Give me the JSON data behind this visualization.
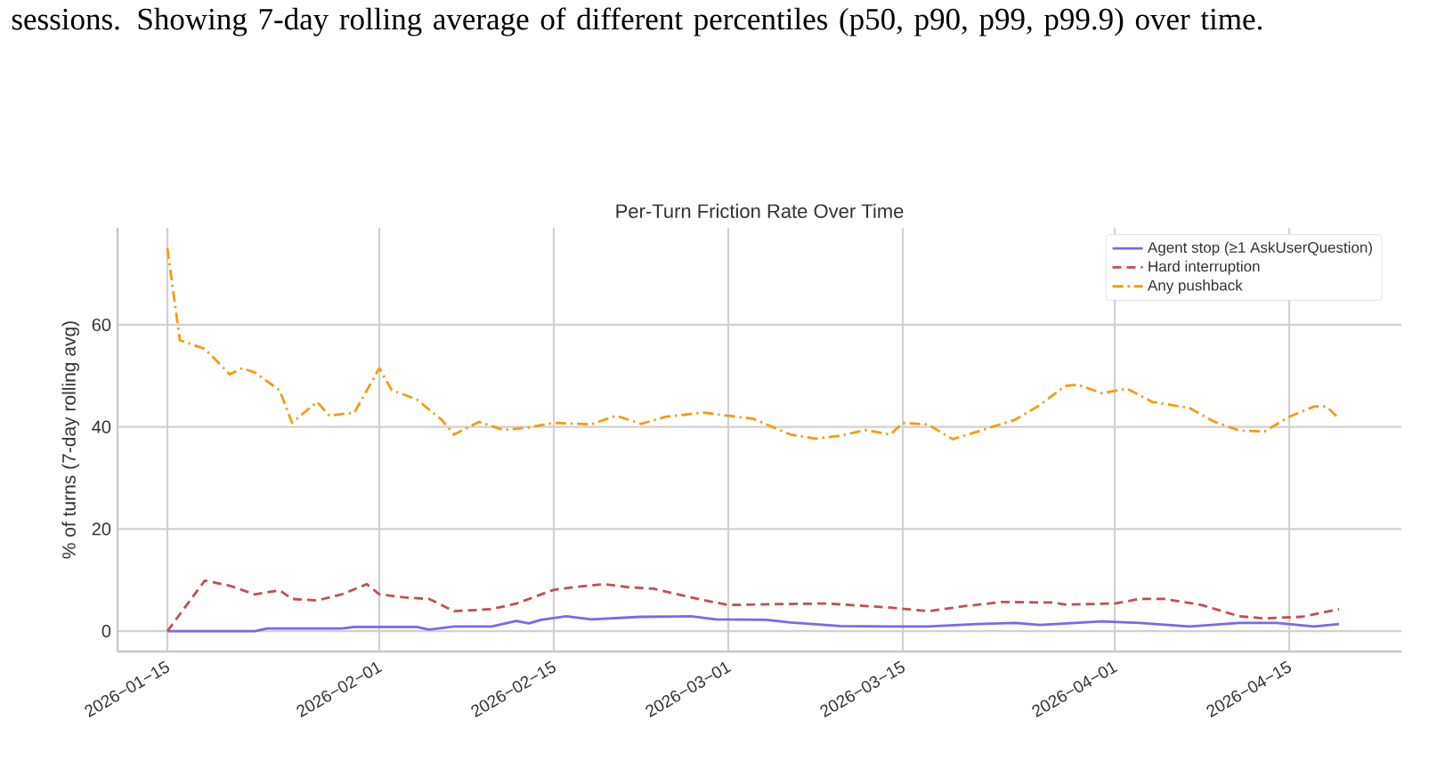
{
  "chart_data": {
    "type": "line",
    "title": "Per-Turn Friction Rate Over Time",
    "ylabel": "% of turns (7-day rolling avg)",
    "annotations": [
      "sessions. Showing 7-day rolling average of different percentiles (p50, p90, p99, p99.9) over time."
    ],
    "xlim": [
      "2026-01-11",
      "2026-04-24"
    ],
    "ylim": [
      -4,
      79
    ],
    "xticks": [
      {
        "value": "2026-01-15",
        "label": "2026−01−15"
      },
      {
        "value": "2026-02-01",
        "label": "2026−02−01"
      },
      {
        "value": "2026-02-15",
        "label": "2026−02−15"
      },
      {
        "value": "2026-03-01",
        "label": "2026−03−01"
      },
      {
        "value": "2026-03-15",
        "label": "2026−03−15"
      },
      {
        "value": "2026-04-01",
        "label": "2026−04−01"
      },
      {
        "value": "2026-04-15",
        "label": "2026−04−15"
      }
    ],
    "yticks": [
      0,
      20,
      40,
      60
    ],
    "grid": true,
    "legend": "top right",
    "series": [
      {
        "name": "Agent stop (≥1 AskUserQuestion)",
        "color": "#7b68ee",
        "line_style": "solid",
        "x": [
          "2026-01-15",
          "2026-01-22",
          "2026-01-23",
          "2026-01-29",
          "2026-01-30",
          "2026-02-04",
          "2026-02-05",
          "2026-02-07",
          "2026-02-10",
          "2026-02-12",
          "2026-02-13",
          "2026-02-14",
          "2026-02-16",
          "2026-02-18",
          "2026-02-22",
          "2026-02-26",
          "2026-02-28",
          "2026-03-04",
          "2026-03-06",
          "2026-03-10",
          "2026-03-14",
          "2026-03-17",
          "2026-03-21",
          "2026-03-24",
          "2026-03-26",
          "2026-03-31",
          "2026-04-03",
          "2026-04-07",
          "2026-04-11",
          "2026-04-14",
          "2026-04-17",
          "2026-04-19"
        ],
        "values": [
          0,
          0,
          0.5,
          0.5,
          0.8,
          0.8,
          0.3,
          0.9,
          0.9,
          2.0,
          1.5,
          2.2,
          2.9,
          2.3,
          2.8,
          2.9,
          2.3,
          2.2,
          1.7,
          1.0,
          0.9,
          0.9,
          1.4,
          1.6,
          1.2,
          1.9,
          1.6,
          0.9,
          1.6,
          1.6,
          0.9,
          1.4
        ]
      },
      {
        "name": "Hard interruption",
        "color": "#c44e52",
        "line_style": "dashed",
        "x": [
          "2026-01-15",
          "2026-01-18",
          "2026-01-20",
          "2026-01-22",
          "2026-01-24",
          "2026-01-25",
          "2026-01-27",
          "2026-01-29",
          "2026-01-31",
          "2026-02-01",
          "2026-02-03",
          "2026-02-05",
          "2026-02-07",
          "2026-02-10",
          "2026-02-12",
          "2026-02-15",
          "2026-02-17",
          "2026-02-19",
          "2026-02-21",
          "2026-02-23",
          "2026-02-26",
          "2026-03-01",
          "2026-03-05",
          "2026-03-09",
          "2026-03-14",
          "2026-03-17",
          "2026-03-20",
          "2026-03-23",
          "2026-03-27",
          "2026-03-28",
          "2026-04-01",
          "2026-04-03",
          "2026-04-05",
          "2026-04-08",
          "2026-04-11",
          "2026-04-13",
          "2026-04-16",
          "2026-04-19"
        ],
        "values": [
          0,
          9.9,
          8.9,
          7.2,
          8.0,
          6.3,
          6.0,
          7.2,
          9.2,
          7.2,
          6.6,
          6.3,
          3.9,
          4.3,
          5.4,
          8.1,
          8.7,
          9.2,
          8.6,
          8.3,
          6.6,
          5.1,
          5.3,
          5.4,
          4.6,
          3.9,
          4.9,
          5.7,
          5.6,
          5.2,
          5.4,
          6.3,
          6.3,
          5.1,
          2.9,
          2.5,
          2.8,
          4.3
        ]
      },
      {
        "name": "Any pushback",
        "color": "#f39c12",
        "line_style": "dashdot",
        "x": [
          "2026-01-15",
          "2026-01-16",
          "2026-01-18",
          "2026-01-20",
          "2026-01-21",
          "2026-01-22",
          "2026-01-24",
          "2026-01-25",
          "2026-01-27",
          "2026-01-28",
          "2026-01-30",
          "2026-02-01",
          "2026-02-02",
          "2026-02-04",
          "2026-02-06",
          "2026-02-07",
          "2026-02-09",
          "2026-02-11",
          "2026-02-13",
          "2026-02-15",
          "2026-02-18",
          "2026-02-20",
          "2026-02-22",
          "2026-02-24",
          "2026-02-27",
          "2026-03-03",
          "2026-03-06",
          "2026-03-08",
          "2026-03-10",
          "2026-03-12",
          "2026-03-14",
          "2026-03-15",
          "2026-03-17",
          "2026-03-19",
          "2026-03-21",
          "2026-03-24",
          "2026-03-26",
          "2026-03-28",
          "2026-03-29",
          "2026-03-31",
          "2026-04-02",
          "2026-04-04",
          "2026-04-07",
          "2026-04-09",
          "2026-04-11",
          "2026-04-13",
          "2026-04-15",
          "2026-04-17",
          "2026-04-18",
          "2026-04-19"
        ],
        "values": [
          75,
          57.0,
          55.3,
          50.3,
          51.5,
          50.7,
          47.2,
          40.8,
          44.9,
          42.2,
          42.8,
          51.5,
          47.2,
          45.4,
          41.4,
          38.5,
          41.0,
          39.4,
          39.9,
          40.8,
          40.5,
          42.2,
          40.6,
          42.0,
          42.8,
          41.6,
          38.5,
          37.7,
          38.3,
          39.4,
          38.5,
          40.8,
          40.5,
          37.6,
          39.1,
          41.4,
          44.3,
          48.0,
          48.3,
          46.6,
          47.5,
          44.9,
          43.7,
          41.0,
          39.3,
          39.1,
          42.0,
          44.0,
          44.0,
          41.6
        ]
      }
    ]
  }
}
